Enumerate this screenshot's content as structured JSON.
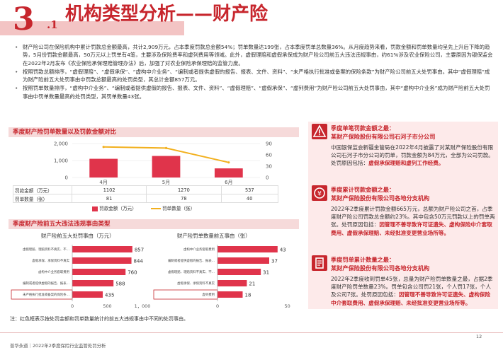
{
  "header": {
    "number": "3",
    "sub_number": ".1",
    "title": "机构类型分析——财产险"
  },
  "bullets": [
    "财产险公司在保险机构中累计罚款总金额最高，共计2,909万元，占本季度罚款总金额54%；罚单数量达199张，占本季度罚单总数量36%。从月度趋势来看，罚款金额和罚单数量均呈先上升后下降的趋势，5月份罚款金额最高，50万元以上罚单有4笔，主要涉及保险费率和虚列费用等领域。此外，虚假理赔和虚假承保成为财产险公司前五大违法违规事由，约61%涉及农业保险公司，主要原因为银保监会在2022年2月发布《农业保险承保理赔管理办法》后，加强了对农业保险承保理赔的监管力度。",
    "按照罚款总额排序，“虚假理赔”、“虚假承保”、“虚构中介业务”、“编制或者提供虚假的报告、报表、文件、资料”、“未严格执行批准或备案的保险条款”为财产险公司前五大处罚事由。其中“虚假理赔”成为财产险前五大处罚事由中罚款总额最高的处罚类型，其总计金额857万元。",
    "按照罚单数量排序，“虚构中介业务”、“编制或者提供虚假的报告、报表、文件、资料”、“虚假理赔”、“虚假承保”、“虚列费用”为财产险公司前五大处罚事由，其中“虚构中介业务”成为财产险前五大处罚事由中罚单数量最高的处罚类型，其罚单数量43张。"
  ],
  "section1_title": "季度财产险罚单数量以及罚款金额对比",
  "section2_title": "季度财产险前五大违法违规事由类型",
  "chart_data": [
    {
      "type": "bar",
      "title": "季度财产险罚单数量以及罚款金额对比",
      "categories": [
        "4月",
        "5月",
        "6月"
      ],
      "series": [
        {
          "name": "罚款金额（万元）",
          "values": [
            1102,
            1270,
            537
          ],
          "axis": "left",
          "kind": "bar"
        },
        {
          "name": "罚单数量（张）",
          "values": [
            81,
            78,
            40
          ],
          "axis": "right",
          "kind": "line"
        }
      ],
      "left_ticks": [
        "0",
        "1,000",
        "2,000"
      ],
      "right_ticks": [
        "0",
        "30",
        "60",
        "90"
      ],
      "ylim_left": [
        0,
        2000
      ],
      "ylim_right": [
        0,
        90
      ],
      "table_rows": [
        {
          "label": "罚款金额（万元）",
          "values": [
            "1102",
            "1270",
            "537"
          ]
        },
        {
          "label": "罚单数量（张）",
          "values": [
            "81",
            "78",
            "40"
          ]
        }
      ],
      "legend": [
        "罚款金额（万元）",
        "罚单数量（张）"
      ]
    },
    {
      "type": "bar",
      "orientation": "horizontal",
      "title": "财产险前五大处罚事由（万元）",
      "categories": [
        "虚假理赔、理赔资料不真实、不完整",
        "虚假承保、承保资料不真实",
        "虚构中介业务套取费用",
        "编制或者提供虚假的报告、报表、文件、资料",
        "未严格执行批准或备案的保险条款、保险费率"
      ],
      "values": [
        857,
        844,
        760,
        588,
        435
      ],
      "x_ticks": [
        "0",
        "500",
        "1，000"
      ]
    },
    {
      "type": "bar",
      "orientation": "horizontal",
      "title": "财产险罚单数量前五事由（张）",
      "categories": [
        "虚构中介业务套取费用",
        "编制或者提供虚假的报告、报表、文件、资料",
        "虚假理赔、理赔资料不真实、不完整",
        "虚假承保、承保资料不真实",
        "虚列费用"
      ],
      "values": [
        43,
        37,
        31,
        21,
        18
      ],
      "x_ticks": [
        "0",
        "50"
      ]
    }
  ],
  "right_panel": [
    {
      "title_line1": "季度单笔罚款金额之最：",
      "title_line2": "某财产保险股份有限公司石河子市分公司",
      "body": "中国银保监会新疆金管局在2022年4月披露了对某财产保险股份有限公司石河子市分公司的罚单，罚款金额为84万元，全部为公司罚款。处罚原因包括：",
      "highlight": "虚假承保理赔和虚列工作经费。"
    },
    {
      "title_line1": "季度累计罚款金额之最：",
      "title_line2": "某财产保险股份有限公司各地分支机构",
      "body": "2022年2季度累计罚款金额665万元，总额为财产险公司之首，占季度财产险公司罚款总金额约23%。其中包含50万元罚款以上的罚单两张。处罚原因包括：",
      "highlight": "因管理不善导致许可证遗失、虚构保险中介套取费用、虚假承保理赔、未经批准变更营业场所等。"
    },
    {
      "title_line1": "季度罚单累计数量之最：",
      "title_line2": "某财产保险股份有限公司各地分支机构",
      "body": "2022年2季度收到罚单45张，总量为财产险罚单数量之最，占据2季度财产险罚单数量23%。罚单包含公司罚21张，个人罚17张，个人及公司7张。处罚原因包括：",
      "highlight": "因管理不善导致许可证遗失、虚构保险中介套取费用、虚假承保理赔、未经批准变更营业场所等。"
    }
  ],
  "footnote": "注：红色框表示按处罚金额和罚单数量统计的前五大违规事由中不同的处罚事由。",
  "footer_left": "普华永道｜2022年2季度保险行业监管处罚分析",
  "page_number": "12",
  "colors": {
    "accent": "#c7262d",
    "bar": "#e0344b",
    "line": "#f2b01e",
    "panel": "#fdeaea"
  }
}
